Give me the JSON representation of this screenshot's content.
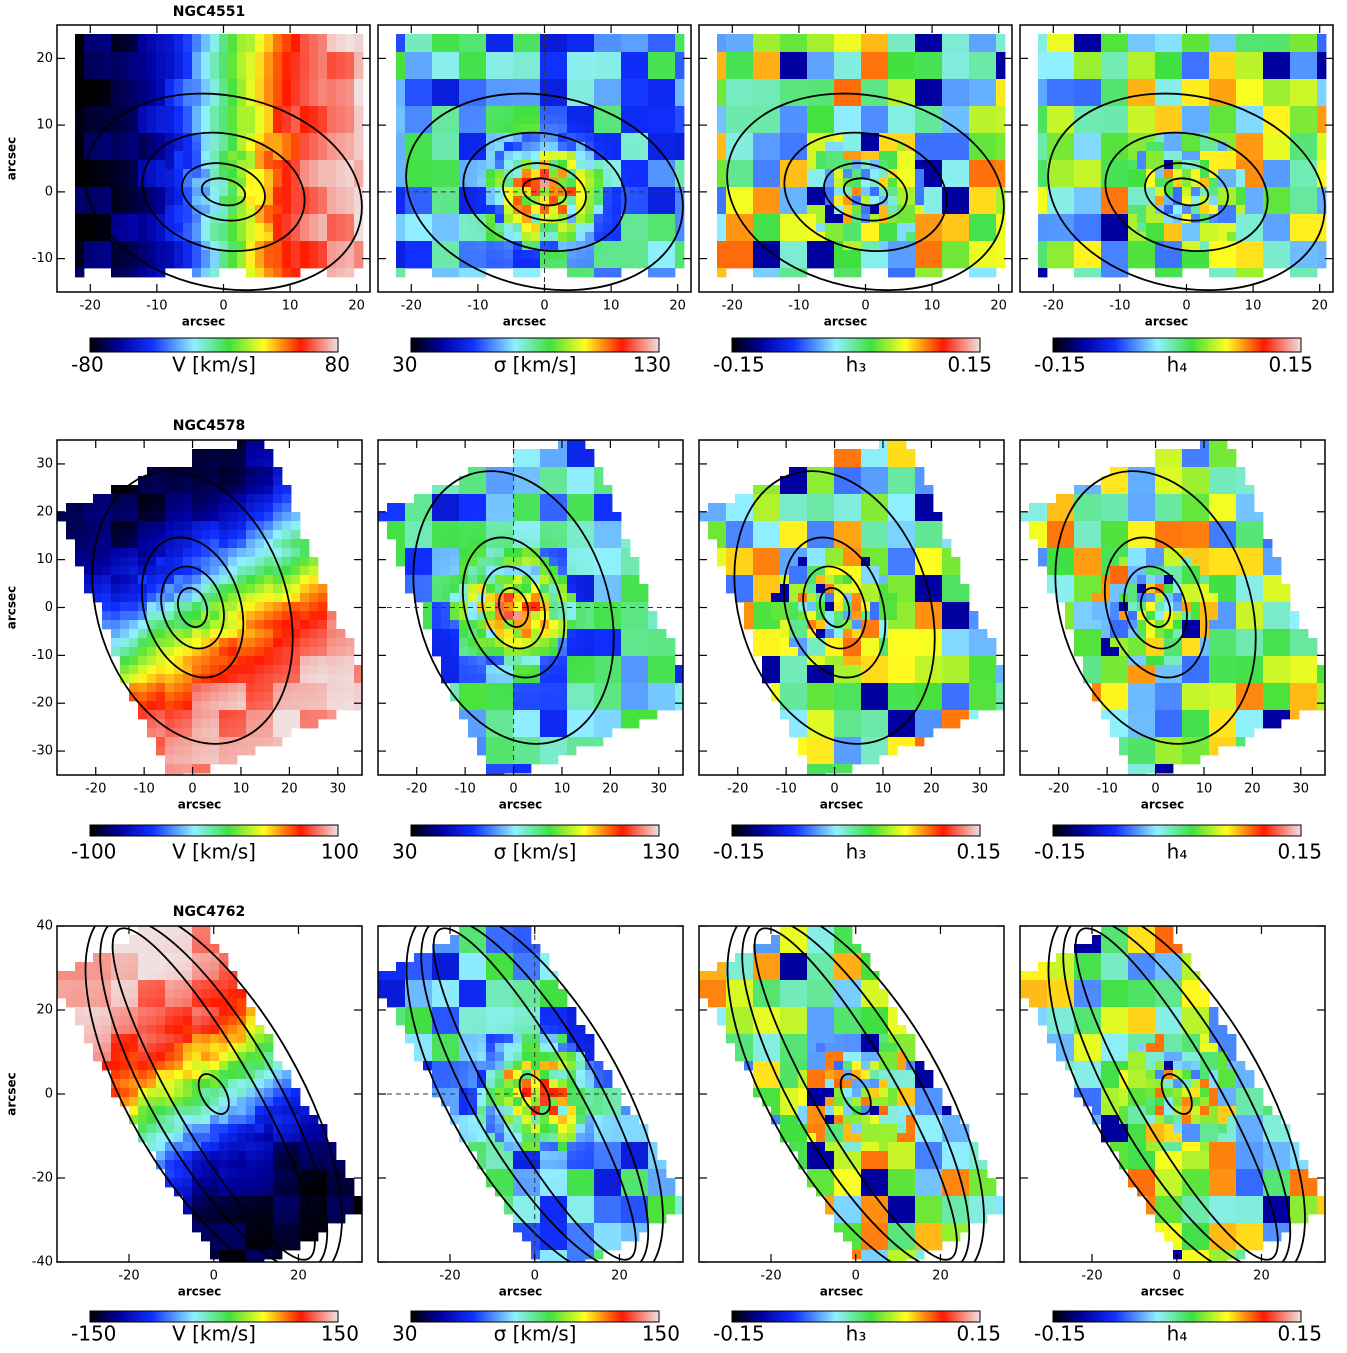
{
  "rows": [
    {
      "galaxy": "NGC4551",
      "x_label": "arcsec",
      "y_label": "arcsec",
      "xlim": [
        -25,
        22
      ],
      "ylim": [
        -15,
        25
      ],
      "xticks": [
        -20,
        -10,
        0,
        10,
        20
      ],
      "yticks": [
        -10,
        0,
        10,
        20
      ],
      "colorbars": [
        {
          "min": -80,
          "label": "V [km/s]",
          "max": 80
        },
        {
          "min": 30,
          "label": "σ [km/s]",
          "max": 130
        },
        {
          "min": -0.15,
          "label": "h₃",
          "max": 0.15
        },
        {
          "min": -0.15,
          "label": "h₄",
          "max": 0.15
        }
      ]
    },
    {
      "galaxy": "NGC4578",
      "x_label": "arcsec",
      "y_label": "arcsec",
      "xlim": [
        -28,
        35
      ],
      "ylim": [
        -35,
        35
      ],
      "xticks": [
        -20,
        -10,
        0,
        10,
        20,
        30
      ],
      "yticks": [
        -30,
        -20,
        -10,
        0,
        10,
        20,
        30
      ],
      "colorbars": [
        {
          "min": -100,
          "label": "V [km/s]",
          "max": 100
        },
        {
          "min": 30,
          "label": "σ [km/s]",
          "max": 130
        },
        {
          "min": -0.15,
          "label": "h₃",
          "max": 0.15
        },
        {
          "min": -0.15,
          "label": "h₄",
          "max": 0.15
        }
      ]
    },
    {
      "galaxy": "NGC4762",
      "x_label": "arcsec",
      "y_label": "arcsec",
      "xlim": [
        -37,
        35
      ],
      "ylim": [
        -40,
        40
      ],
      "xticks": [
        -20,
        0,
        20
      ],
      "yticks": [
        -40,
        -20,
        0,
        20,
        40
      ],
      "colorbars": [
        {
          "min": -150,
          "label": "V [km/s]",
          "max": 150
        },
        {
          "min": 30,
          "label": "σ [km/s]",
          "max": 150
        },
        {
          "min": -0.15,
          "label": "h₃",
          "max": 0.15
        },
        {
          "min": -0.15,
          "label": "h₄",
          "max": 0.15
        }
      ]
    }
  ]
}
